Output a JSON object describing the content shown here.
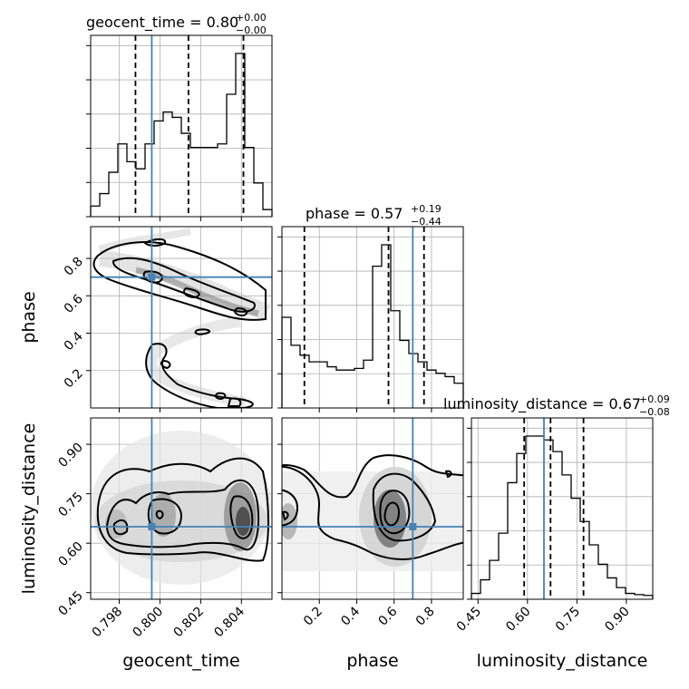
{
  "chart_data": {
    "type": "corner",
    "parameters": [
      "geocent_time",
      "phase",
      "luminosity_distance"
    ],
    "truths": {
      "geocent_time": 0.7996,
      "phase": 0.7,
      "luminosity_distance": 0.65
    },
    "titles": [
      {
        "param": "geocent_time",
        "text": "geocent_time = 0.80",
        "sup": "+0.00",
        "sub": "−0.00"
      },
      {
        "param": "phase",
        "text": "phase = 0.57",
        "sup": "+0.19",
        "sub": "−0.44"
      },
      {
        "param": "luminosity_distance",
        "text": "luminosity_distance = 0.67",
        "sup": "+0.09",
        "sub": "−0.08"
      }
    ],
    "axes": {
      "geocent_time": {
        "xlabel": "geocent_time",
        "range": [
          0.7966,
          0.8055
        ],
        "ticks": [
          0.798,
          0.8,
          0.802,
          0.804
        ],
        "tick_labels": [
          "0.798",
          "0.800",
          "0.802",
          "0.804"
        ]
      },
      "phase": {
        "xlabel": "phase",
        "ylabel": "phase",
        "range": [
          0.0,
          0.97
        ],
        "ticks": [
          0.2,
          0.4,
          0.6,
          0.8
        ],
        "tick_labels": [
          "0.2",
          "0.4",
          "0.6",
          "0.8"
        ]
      },
      "luminosity_distance": {
        "xlabel": "luminosity_distance",
        "ylabel": "luminosity_distance",
        "range": [
          0.43,
          0.98
        ],
        "ticks": [
          0.45,
          0.6,
          0.75,
          0.9
        ],
        "tick_labels": [
          "0.45",
          "0.60",
          "0.75",
          "0.90"
        ]
      }
    },
    "histograms": [
      {
        "param": "geocent_time",
        "bins": 20,
        "counts": [
          0.3,
          0.65,
          1.25,
          2.05,
          1.55,
          1.35,
          2.05,
          2.7,
          2.95,
          2.8,
          2.35,
          1.95,
          1.95,
          1.95,
          2.05,
          3.45,
          4.6,
          1.95,
          0.95,
          0.2
        ],
        "quantiles": [
          0.7988,
          0.8014,
          0.8041
        ]
      },
      {
        "param": "phase",
        "bins": 20,
        "counts": [
          2.75,
          1.9,
          1.6,
          1.4,
          1.4,
          1.25,
          1.15,
          1.15,
          1.2,
          1.45,
          4.3,
          4.95,
          2.95,
          2.05,
          1.65,
          1.4,
          1.15,
          1.05,
          0.95,
          0.75
        ],
        "quantiles": [
          0.12,
          0.57,
          0.76
        ]
      },
      {
        "param": "luminosity_distance",
        "bins": 20,
        "counts": [
          0.15,
          0.5,
          1.0,
          1.7,
          3.0,
          3.75,
          4.2,
          4.2,
          4.1,
          3.8,
          3.2,
          2.6,
          2.0,
          1.4,
          0.9,
          0.55,
          0.3,
          0.15,
          0.12,
          0.1
        ],
        "quantiles": [
          0.59,
          0.67,
          0.77
        ]
      }
    ],
    "joint_2d": [
      {
        "x": "geocent_time",
        "y": "phase",
        "type": "contour"
      },
      {
        "x": "geocent_time",
        "y": "luminosity_distance",
        "type": "contour"
      },
      {
        "x": "phase",
        "y": "luminosity_distance",
        "type": "contour"
      }
    ],
    "truth_color": "#4682b4",
    "grid": true
  }
}
